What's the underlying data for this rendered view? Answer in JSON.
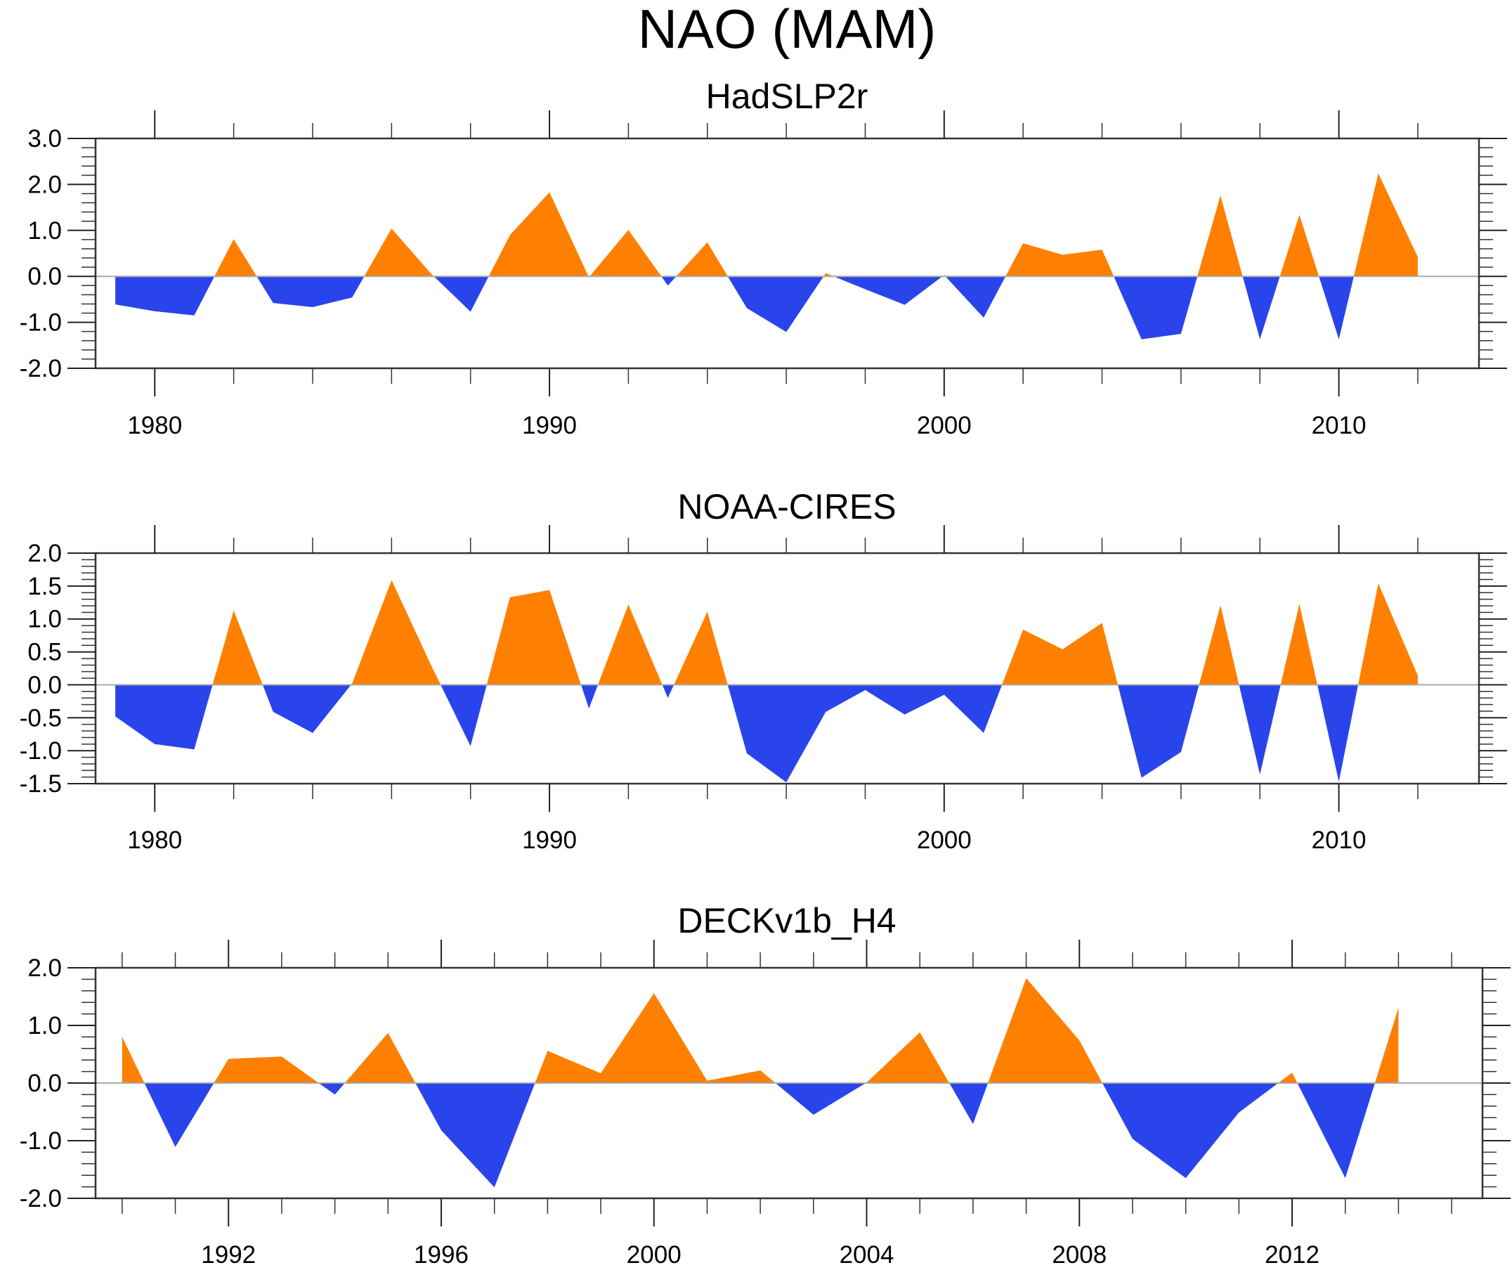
{
  "chart_data": {
    "title": "NAO (MAM)",
    "colors": {
      "positive": "#ff8000",
      "negative": "#2a44ec"
    },
    "panels": [
      {
        "type": "area",
        "title": "HadSLP2r",
        "xlabel": "",
        "ylabel": "",
        "xlim": [
          1978.5,
          2013.55
        ],
        "ylim": [
          -2.0,
          3.0
        ],
        "x_major_ticks": [
          1980,
          1990,
          2000,
          2010
        ],
        "x_minor_step": 2,
        "y_major_ticks": [
          -2.0,
          -1.0,
          0.0,
          1.0,
          2.0,
          3.0
        ],
        "y_tick_labels": [
          "-2.0",
          "-1.0",
          "0.0",
          "1.0",
          "2.0",
          "3.0"
        ],
        "y_minor_step": 0.2,
        "x_tick_labels": [
          "1980",
          "1990",
          "2000",
          "2010"
        ],
        "x": [
          1979,
          1980,
          1981,
          1982,
          1983,
          1984,
          1985,
          1986,
          1987,
          1988,
          1989,
          1990,
          1991,
          1992,
          1993,
          1994,
          1995,
          1996,
          1997,
          1998,
          1999,
          2000,
          2001,
          2002,
          2003,
          2004,
          2005,
          2006,
          2007,
          2008,
          2009,
          2010,
          2011,
          2012
        ],
        "values": [
          -0.61,
          -0.76,
          -0.85,
          0.81,
          -0.58,
          -0.67,
          -0.46,
          1.04,
          0.06,
          -0.77,
          0.9,
          1.83,
          -0.02,
          1.01,
          -0.2,
          0.74,
          -0.69,
          -1.21,
          0.07,
          -0.28,
          -0.62,
          0.03,
          -0.9,
          0.72,
          0.47,
          0.58,
          -1.37,
          -1.25,
          1.76,
          -1.37,
          1.34,
          -1.37,
          2.24,
          0.42
        ]
      },
      {
        "type": "area",
        "title": "NOAA-CIRES",
        "xlabel": "",
        "ylabel": "",
        "xlim": [
          1978.5,
          2013.55
        ],
        "ylim": [
          -1.5,
          2.0
        ],
        "x_major_ticks": [
          1980,
          1990,
          2000,
          2010
        ],
        "x_minor_step": 2,
        "y_major_ticks": [
          -1.5,
          -1.0,
          -0.5,
          0.0,
          0.5,
          1.0,
          1.5,
          2.0
        ],
        "y_tick_labels": [
          "-1.5",
          "-1.0",
          "-0.5",
          "0.0",
          "0.5",
          "1.0",
          "1.5",
          "2.0"
        ],
        "y_minor_step": 0.1,
        "x_tick_labels": [
          "1980",
          "1990",
          "2000",
          "2010"
        ],
        "x": [
          1979,
          1980,
          1981,
          1982,
          1983,
          1984,
          1985,
          1986,
          1987,
          1988,
          1989,
          1990,
          1991,
          1992,
          1993,
          1994,
          1995,
          1996,
          1997,
          1998,
          1999,
          2000,
          2001,
          2002,
          2003,
          2004,
          2005,
          2006,
          2007,
          2008,
          2009,
          2010,
          2011,
          2012
        ],
        "values": [
          -0.48,
          -0.9,
          -0.98,
          1.13,
          -0.41,
          -0.73,
          0.02,
          1.59,
          0.3,
          -0.93,
          1.33,
          1.44,
          -0.36,
          1.22,
          -0.2,
          1.11,
          -1.04,
          -1.48,
          -0.41,
          -0.08,
          -0.45,
          -0.15,
          -0.73,
          0.84,
          0.54,
          0.94,
          -1.41,
          -1.02,
          1.21,
          -1.36,
          1.23,
          -1.47,
          1.54,
          0.14
        ]
      },
      {
        "type": "area",
        "title": "DECKv1b_H4",
        "xlabel": "",
        "ylabel": "",
        "xlim": [
          1989.5,
          2015.58
        ],
        "ylim": [
          -2.0,
          2.0
        ],
        "x_major_ticks": [
          1992,
          1996,
          2000,
          2004,
          2008,
          2012
        ],
        "x_minor_step": 1,
        "y_major_ticks": [
          -2.0,
          -1.0,
          0.0,
          1.0,
          2.0
        ],
        "y_tick_labels": [
          "-2.0",
          "-1.0",
          "0.0",
          "1.0",
          "2.0"
        ],
        "y_minor_step": 0.2,
        "x_tick_labels": [
          "1992",
          "1996",
          "2000",
          "2004",
          "2008",
          "2012"
        ],
        "x": [
          1990,
          1991,
          1992,
          1993,
          1994,
          1995,
          1996,
          1997,
          1998,
          1999,
          2000,
          2001,
          2002,
          2003,
          2004,
          2005,
          2006,
          2007,
          2008,
          2009,
          2010,
          2011,
          2012,
          2013,
          2014
        ],
        "values": [
          0.8,
          -1.11,
          0.42,
          0.46,
          -0.2,
          0.87,
          -0.82,
          -1.81,
          0.56,
          0.17,
          1.56,
          0.04,
          0.22,
          -0.55,
          0.01,
          0.88,
          -0.71,
          1.82,
          0.74,
          -0.97,
          -1.65,
          -0.51,
          0.18,
          -1.65,
          1.31
        ]
      }
    ]
  }
}
